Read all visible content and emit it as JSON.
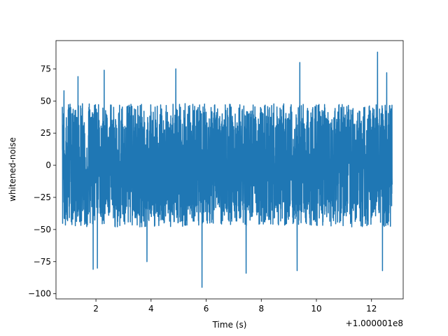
{
  "chart_data": {
    "type": "line",
    "title": "",
    "xlabel": "Time (s)",
    "ylabel": "whitened-noise",
    "x_offset_label": "+1.000001e8",
    "xlim": [
      0.55,
      13.15
    ],
    "ylim": [
      -104,
      97
    ],
    "x_range": [
      0.78,
      12.75
    ],
    "xticks": [
      2,
      4,
      6,
      8,
      10,
      12
    ],
    "xtick_labels": [
      "2",
      "4",
      "6",
      "8",
      "10",
      "12"
    ],
    "yticks": [
      -100,
      -75,
      -50,
      -25,
      0,
      25,
      50,
      75
    ],
    "ytick_labels": [
      "−100",
      "−75",
      "−50",
      "−25",
      "0",
      "25",
      "50",
      "75"
    ],
    "grid": false,
    "series": [
      {
        "color": "#1f77b4",
        "sigma": 15,
        "envelope_upper": 48,
        "envelope_lower": -45,
        "peaks": [
          {
            "x": 0.84,
            "y": 58
          },
          {
            "x": 1.35,
            "y": 69
          },
          {
            "x": 2.3,
            "y": 74
          },
          {
            "x": 4.9,
            "y": 75
          },
          {
            "x": 9.4,
            "y": 80
          },
          {
            "x": 12.22,
            "y": 88
          },
          {
            "x": 12.55,
            "y": 72
          },
          {
            "x": 1.9,
            "y": -81
          },
          {
            "x": 2.05,
            "y": -80
          },
          {
            "x": 3.85,
            "y": -75
          },
          {
            "x": 5.85,
            "y": -95
          },
          {
            "x": 7.45,
            "y": -84
          },
          {
            "x": 9.3,
            "y": -82
          },
          {
            "x": 12.4,
            "y": -82
          }
        ]
      }
    ]
  }
}
